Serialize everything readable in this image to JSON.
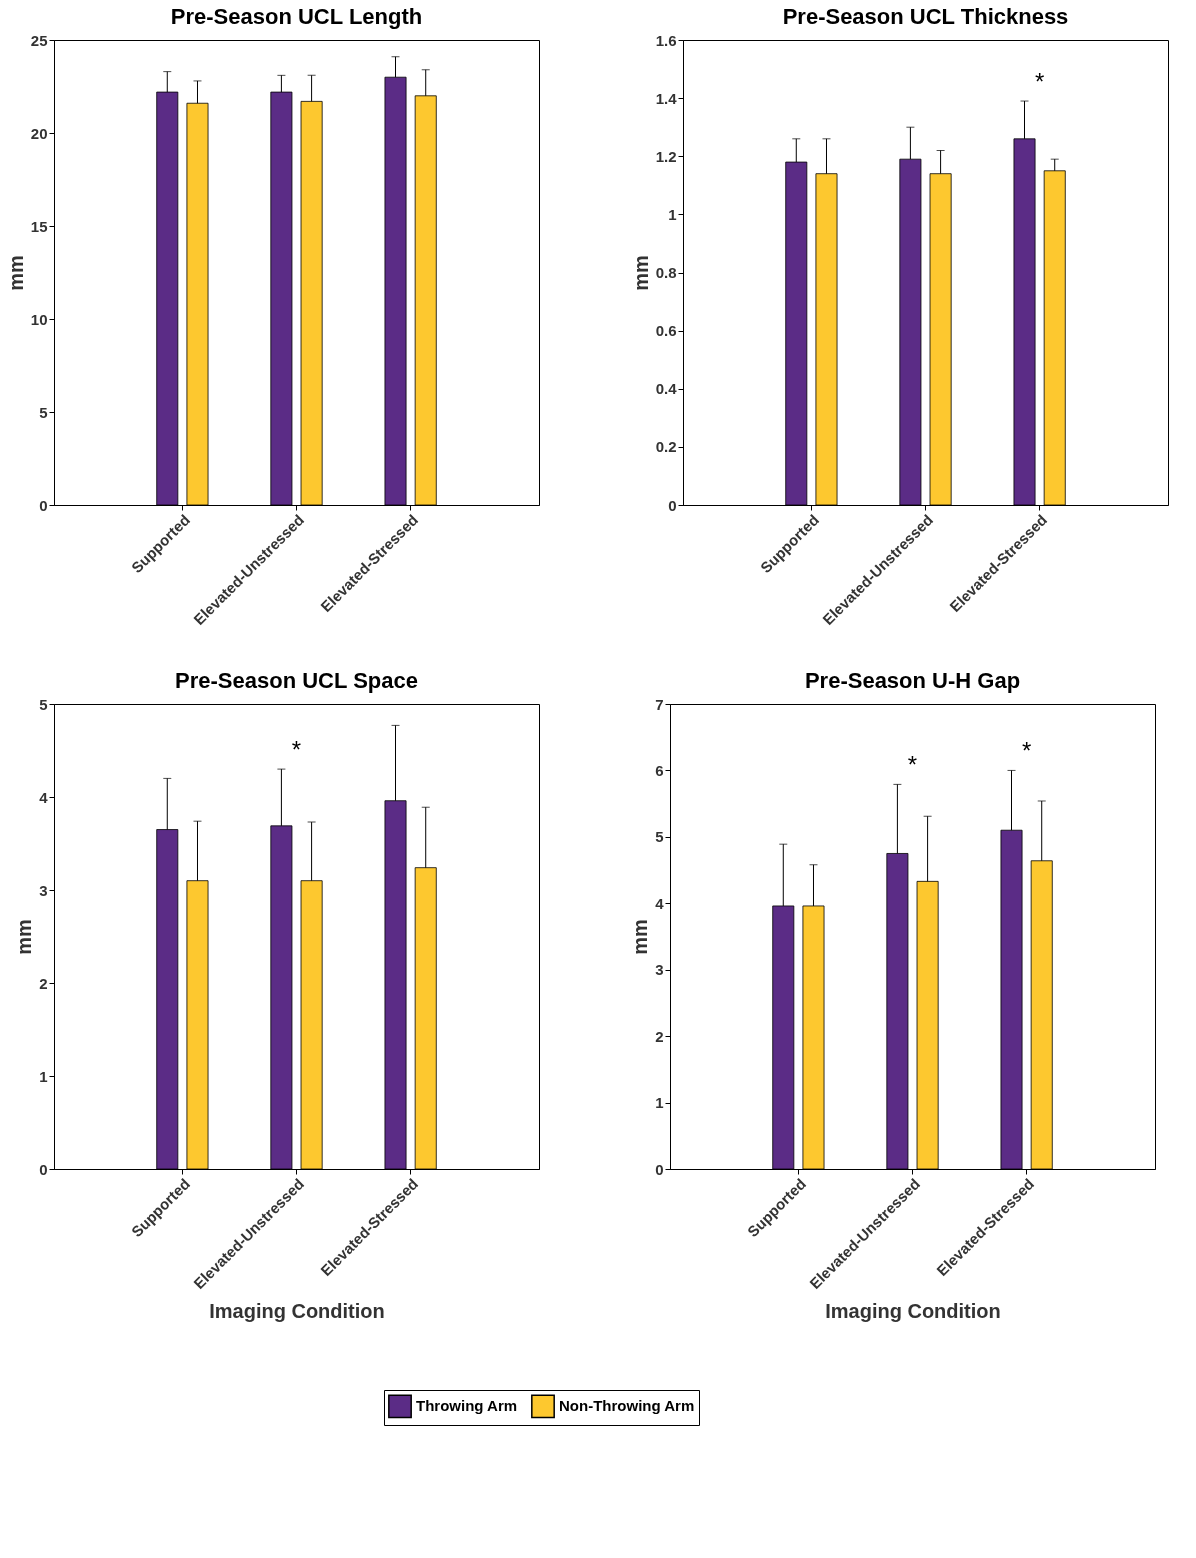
{
  "chart_data": [
    {
      "type": "bar",
      "title": "Pre-Season UCL Length",
      "ylabel": "mm",
      "categories": [
        "Supported",
        "Elevated-Unstressed",
        "Elevated-Stressed"
      ],
      "series": [
        {
          "name": "Throwing Arm",
          "color": "#5b2c86",
          "values": [
            22.2,
            22.2,
            23.0
          ],
          "errors": [
            [
              22.2,
              23.3
            ],
            [
              22.2,
              23.1
            ],
            [
              23.0,
              24.1
            ]
          ]
        },
        {
          "name": "Non-Throwing Arm",
          "color": "#fdc82f",
          "values": [
            21.6,
            21.7,
            22.0
          ],
          "errors": [
            [
              21.6,
              22.8
            ],
            [
              21.7,
              23.1
            ],
            [
              22.0,
              23.4
            ]
          ]
        }
      ],
      "ylim": [
        0,
        25
      ],
      "yticks": [
        0,
        5,
        10,
        15,
        20,
        25
      ],
      "grid": false,
      "legend": "bottom"
    },
    {
      "type": "bar",
      "title": "Pre-Season UCL Thickness",
      "ylabel": "mm",
      "categories": [
        "Supported",
        "Elevated-Unstressed",
        "Elevated-Stressed"
      ],
      "series": [
        {
          "name": "Throwing Arm",
          "color": "#5b2c86",
          "values": [
            1.18,
            1.19,
            1.26
          ],
          "errors": [
            [
              1.18,
              1.26
            ],
            [
              1.19,
              1.3
            ],
            [
              1.26,
              1.39
            ]
          ]
        },
        {
          "name": "Non-Throwing Arm",
          "color": "#fdc82f",
          "values": [
            1.14,
            1.14,
            1.15
          ],
          "errors": [
            [
              1.14,
              1.26
            ],
            [
              1.14,
              1.22
            ],
            [
              1.15,
              1.19
            ]
          ]
        }
      ],
      "ylim": [
        0,
        1.6
      ],
      "yticks": [
        0,
        0.2,
        0.4,
        0.6,
        0.8,
        1,
        1.2,
        1.4,
        1.6
      ],
      "grid": false,
      "legend": "bottom",
      "annotations": [
        "*"
      ]
    },
    {
      "type": "bar",
      "title": "Pre-Season UCL Space",
      "ylabel": "mm",
      "xlabel": "Imaging Condition",
      "categories": [
        "Supported",
        "Elevated-Unstressed",
        "Elevated-Stressed"
      ],
      "series": [
        {
          "name": "Throwing Arm",
          "color": "#5b2c86",
          "values": [
            3.65,
            3.69,
            3.96
          ],
          "errors": [
            [
              3.65,
              4.2
            ],
            [
              3.69,
              4.3
            ],
            [
              3.96,
              4.77
            ]
          ]
        },
        {
          "name": "Non-Throwing Arm",
          "color": "#fdc82f",
          "values": [
            3.1,
            3.1,
            3.24
          ],
          "errors": [
            [
              3.1,
              3.74
            ],
            [
              3.1,
              3.73
            ],
            [
              3.24,
              3.89
            ]
          ]
        }
      ],
      "ylim": [
        0,
        5
      ],
      "yticks": [
        0,
        1,
        2,
        3,
        4,
        5
      ],
      "grid": false,
      "legend": "bottom",
      "annotations": [
        "*"
      ]
    },
    {
      "type": "bar",
      "title": "Pre-Season U-H Gap",
      "ylabel": "mm",
      "xlabel": "Imaging Condition",
      "categories": [
        "Supported",
        "Elevated-Unstressed",
        "Elevated-Stressed"
      ],
      "series": [
        {
          "name": "Throwing Arm",
          "color": "#5b2c86",
          "values": [
            3.96,
            4.75,
            5.1
          ],
          "errors": [
            [
              3.96,
              4.89
            ],
            [
              4.75,
              5.79
            ],
            [
              5.1,
              6.0
            ]
          ]
        },
        {
          "name": "Non-Throwing Arm",
          "color": "#fdc82f",
          "values": [
            3.96,
            4.33,
            4.64
          ],
          "errors": [
            [
              3.96,
              4.58
            ],
            [
              4.33,
              5.31
            ],
            [
              4.64,
              5.54
            ]
          ]
        }
      ],
      "ylim": [
        0,
        7
      ],
      "yticks": [
        0,
        1,
        2,
        3,
        4,
        5,
        6,
        7
      ],
      "grid": false,
      "legend": "bottom",
      "annotations": [
        "*",
        "*"
      ]
    }
  ]
}
